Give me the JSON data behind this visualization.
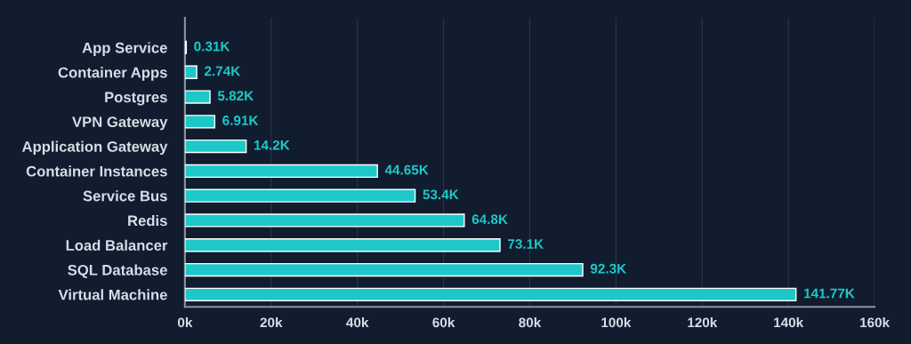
{
  "chart_data": {
    "type": "bar",
    "orientation": "horizontal",
    "categories": [
      "App Service",
      "Container Apps",
      "Postgres",
      "VPN Gateway",
      "Application Gateway",
      "Container Instances",
      "Service Bus",
      "Redis",
      "Load Balancer",
      "SQL Database",
      "Virtual Machine"
    ],
    "values": [
      310,
      2740,
      5820,
      6910,
      14200,
      44650,
      53400,
      64800,
      73100,
      92300,
      141770
    ],
    "value_labels": [
      "0.31K",
      "2.74K",
      "5.82K",
      "6.91K",
      "14.2K",
      "44.65K",
      "53.4K",
      "64.8K",
      "73.1K",
      "92.3K",
      "141.77K"
    ],
    "color": "#1fc8c8",
    "xlim": [
      0,
      160000
    ],
    "xticks": [
      {
        "value": 0,
        "label": "0k"
      },
      {
        "value": 20000,
        "label": "20k"
      },
      {
        "value": 40000,
        "label": "40k"
      },
      {
        "value": 60000,
        "label": "60k"
      },
      {
        "value": 80000,
        "label": "80k"
      },
      {
        "value": 100000,
        "label": "100k"
      },
      {
        "value": 120000,
        "label": "120k"
      },
      {
        "value": 140000,
        "label": "140k"
      },
      {
        "value": 160000,
        "label": "160k"
      }
    ],
    "grid": "x",
    "legend": false
  }
}
